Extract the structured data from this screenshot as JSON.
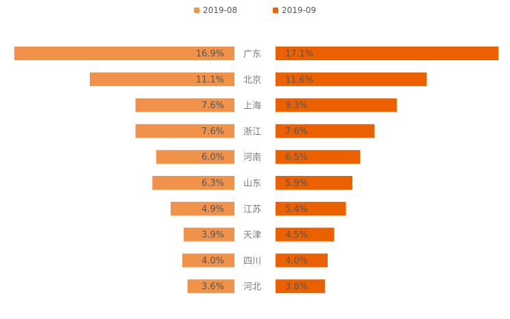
{
  "chart_data": {
    "type": "bar",
    "orientation": "horizontal-butterfly",
    "title": "",
    "xlabel": "",
    "ylabel": "",
    "unit": "%",
    "categories": [
      "广东",
      "北京",
      "上海",
      "浙江",
      "河南",
      "山东",
      "江苏",
      "天津",
      "四川",
      "河北"
    ],
    "series": [
      {
        "name": "2019-08",
        "color": "#F0924A",
        "side": "left",
        "values": [
          16.9,
          11.1,
          7.6,
          7.6,
          6.0,
          6.3,
          4.9,
          3.9,
          4.0,
          3.6
        ],
        "labels": [
          "16.9%",
          "11.1%",
          "7.6%",
          "7.6%",
          "6.0%",
          "6.3%",
          "4.9%",
          "3.9%",
          "4.0%",
          "3.6%"
        ]
      },
      {
        "name": "2019-09",
        "color": "#EB6100",
        "side": "right",
        "values": [
          17.1,
          11.6,
          9.3,
          7.6,
          6.5,
          5.9,
          5.4,
          4.5,
          4.0,
          3.8
        ],
        "labels": [
          "17.1%",
          "11.6%",
          "9.3%",
          "7.6%",
          "6.5%",
          "5.9%",
          "5.4%",
          "4.5%",
          "4.0%",
          "3.8%"
        ]
      }
    ],
    "xlim": [
      0,
      17.1
    ],
    "grid": false,
    "legend_position": "top-center"
  }
}
